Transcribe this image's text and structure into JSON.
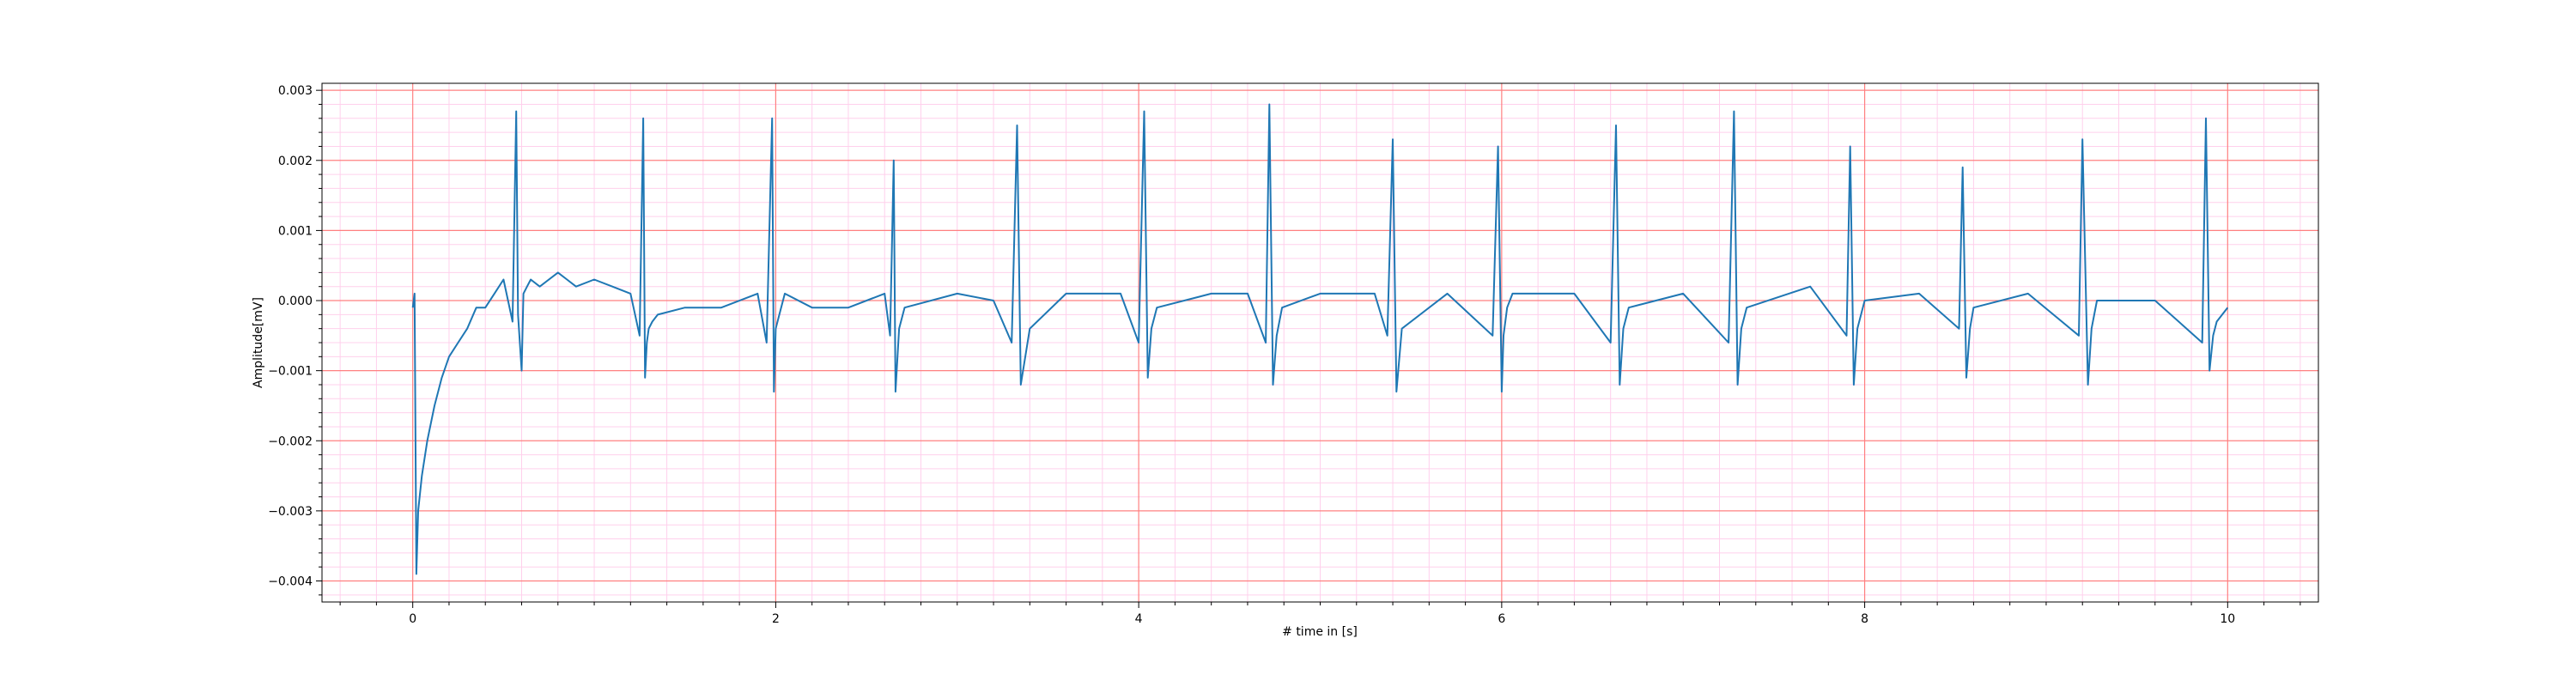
{
  "chart_data": {
    "type": "line",
    "title": "",
    "xlabel": "# time in [s]",
    "ylabel": "Amplitude[mV]",
    "xlim": [
      -0.5,
      10.5
    ],
    "ylim": [
      -0.0043,
      0.0031
    ],
    "x_ticks": [
      0,
      2,
      4,
      6,
      8,
      10
    ],
    "x_tick_labels": [
      "0",
      "2",
      "4",
      "6",
      "8",
      "10"
    ],
    "y_ticks": [
      -0.004,
      -0.003,
      -0.002,
      -0.001,
      0.0,
      0.001,
      0.002,
      0.003
    ],
    "y_tick_labels": [
      "−0.004",
      "−0.003",
      "−0.002",
      "−0.001",
      "0.000",
      "0.001",
      "0.002",
      "0.003"
    ],
    "grid": {
      "major": true,
      "minor": true,
      "major_color": "#ff8080",
      "minor_color": "#ffd0ec"
    },
    "legend": "none",
    "series": [
      {
        "color": "#1f77b4",
        "x": [
          0.0,
          0.01,
          0.02,
          0.03,
          0.05,
          0.08,
          0.12,
          0.16,
          0.2,
          0.25,
          0.3,
          0.35,
          0.4,
          0.45,
          0.5,
          0.55,
          0.57,
          0.58,
          0.6,
          0.61,
          0.63,
          0.65,
          0.7,
          0.8,
          0.85,
          0.9,
          1.0,
          1.1,
          1.2,
          1.25,
          1.27,
          1.28,
          1.29,
          1.3,
          1.32,
          1.35,
          1.5,
          1.7,
          1.9,
          1.95,
          1.98,
          1.99,
          2.0,
          2.02,
          2.05,
          2.2,
          2.4,
          2.6,
          2.63,
          2.65,
          2.66,
          2.68,
          2.71,
          3.0,
          3.2,
          3.3,
          3.33,
          3.35,
          3.4,
          3.6,
          3.9,
          4.0,
          4.03,
          4.05,
          4.07,
          4.1,
          4.4,
          4.6,
          4.7,
          4.72,
          4.74,
          4.76,
          4.79,
          5.0,
          5.3,
          5.37,
          5.4,
          5.42,
          5.45,
          5.7,
          5.95,
          5.98,
          6.0,
          6.01,
          6.03,
          6.06,
          6.4,
          6.6,
          6.63,
          6.65,
          6.67,
          6.7,
          7.0,
          7.25,
          7.28,
          7.3,
          7.32,
          7.35,
          7.7,
          7.9,
          7.92,
          7.94,
          7.96,
          8.0,
          8.3,
          8.52,
          8.54,
          8.56,
          8.58,
          8.6,
          8.9,
          9.18,
          9.2,
          9.23,
          9.25,
          9.28,
          9.6,
          9.86,
          9.88,
          9.9,
          9.92,
          9.94,
          10.0
        ],
        "y": [
          -0.0001,
          0.0001,
          -0.0039,
          -0.003,
          -0.0025,
          -0.002,
          -0.0015,
          -0.0011,
          -0.0008,
          -0.0006,
          -0.0004,
          -0.0001,
          -0.0001,
          0.0001,
          0.0003,
          -0.0003,
          0.0027,
          -0.0002,
          -0.001,
          0.0001,
          0.0002,
          0.0003,
          0.0002,
          0.0004,
          0.0003,
          0.0002,
          0.0003,
          0.0002,
          0.0001,
          -0.0005,
          0.0026,
          -0.0011,
          -0.0006,
          -0.0004,
          -0.0003,
          -0.0002,
          -0.0001,
          -0.0001,
          0.0001,
          -0.0006,
          0.0026,
          -0.0013,
          -0.0004,
          -0.0002,
          0.0001,
          -0.0001,
          -0.0001,
          0.0001,
          -0.0005,
          0.002,
          -0.0013,
          -0.0004,
          -0.0001,
          0.0001,
          0.0,
          -0.0006,
          0.0025,
          -0.0012,
          -0.0004,
          0.0001,
          0.0001,
          -0.0006,
          0.0027,
          -0.0011,
          -0.0004,
          -0.0001,
          0.0001,
          0.0001,
          -0.0006,
          0.0028,
          -0.0012,
          -0.0005,
          -0.0001,
          0.0001,
          0.0001,
          -0.0005,
          0.0023,
          -0.0013,
          -0.0004,
          0.0001,
          -0.0005,
          0.0022,
          -0.0013,
          -0.0005,
          -0.0001,
          0.0001,
          0.0001,
          -0.0006,
          0.0025,
          -0.0012,
          -0.0004,
          -0.0001,
          0.0001,
          -0.0006,
          0.0027,
          -0.0012,
          -0.0004,
          -0.0001,
          0.0002,
          -0.0005,
          0.0022,
          -0.0012,
          -0.0004,
          0.0,
          0.0001,
          -0.0004,
          0.0019,
          -0.0011,
          -0.0004,
          -0.0001,
          0.0001,
          -0.0005,
          0.0023,
          -0.0012,
          -0.0004,
          0.0,
          0.0,
          -0.0006,
          0.0026,
          -0.001,
          -0.0005,
          -0.0003,
          -0.0001
        ]
      }
    ]
  }
}
